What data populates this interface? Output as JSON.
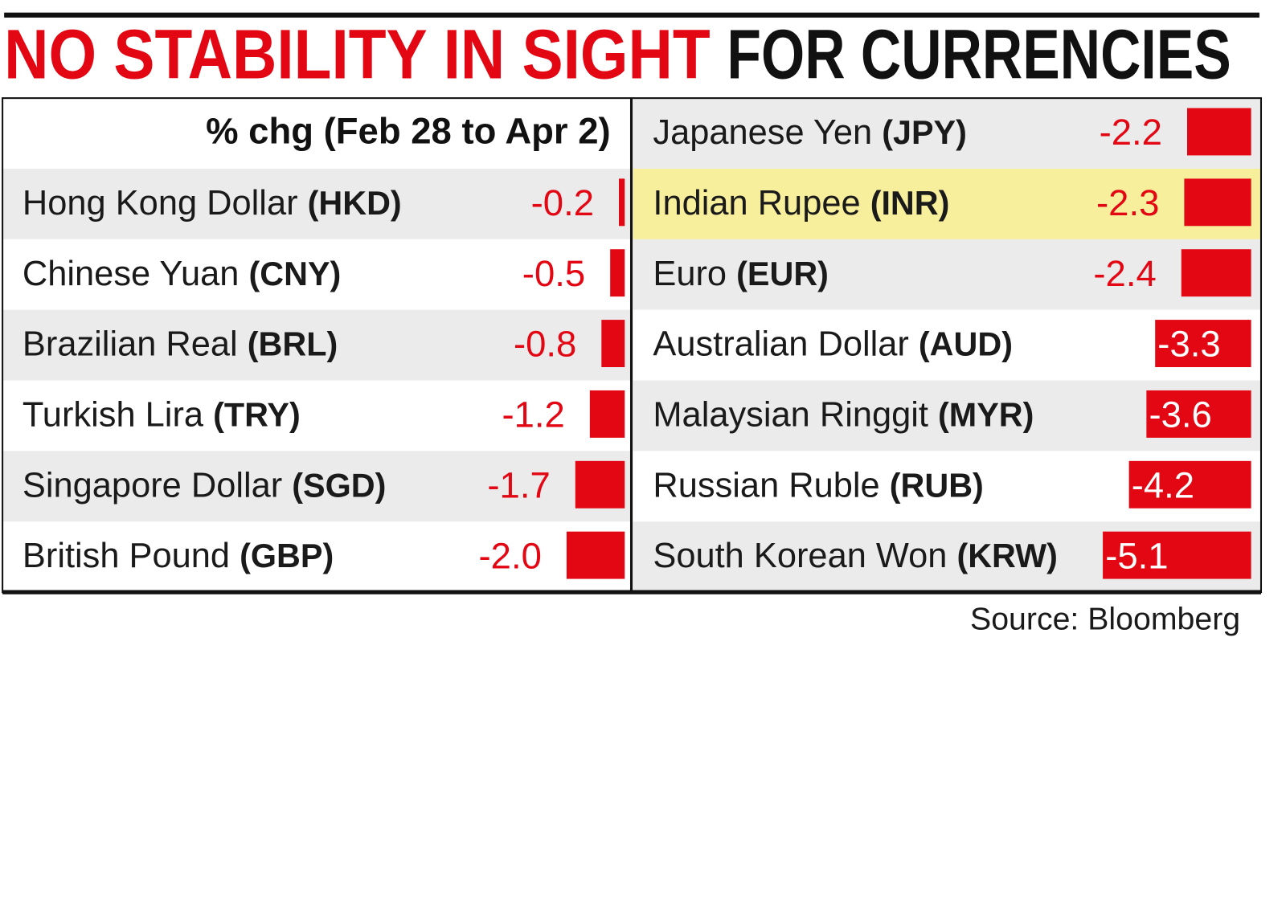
{
  "chart_data": {
    "type": "bar",
    "title": {
      "highlight": "NO STABILITY IN SIGHT",
      "rest": "FOR CURRENCIES"
    },
    "subtitle": "% chg (Feb 28 to Apr 2)",
    "categories": [
      "Hong Kong Dollar",
      "Chinese Yuan",
      "Brazilian Real",
      "Turkish Lira",
      "Singapore Dollar",
      "British Pound",
      "Japanese Yen",
      "Indian Rupee",
      "Euro",
      "Australian Dollar",
      "Malaysian Ringgit",
      "Russian Ruble",
      "South Korean Won"
    ],
    "codes": [
      "(HKD)",
      "(CNY)",
      "(BRL)",
      "(TRY)",
      "(SGD)",
      "(GBP)",
      "(JPY)",
      "(INR)",
      "(EUR)",
      "(AUD)",
      "(MYR)",
      "(RUB)",
      "(KRW)"
    ],
    "values": [
      -0.2,
      -0.5,
      -0.8,
      -1.2,
      -1.7,
      -2.0,
      -2.2,
      -2.3,
      -2.4,
      -3.3,
      -3.6,
      -4.2,
      -5.1
    ],
    "value_labels": [
      "-0.2",
      "-0.5",
      "-0.8",
      "-1.2",
      "-1.7",
      "-2.0",
      "-2.2",
      "-2.3",
      "-2.4",
      "-3.3",
      "-3.6",
      "-4.2",
      "-5.1"
    ],
    "color": "#e30613",
    "title_highlight_color": "#e30613",
    "highlight_index": 7,
    "highlight_color": "#f8ef9c",
    "source": "Source: Bloomberg"
  }
}
